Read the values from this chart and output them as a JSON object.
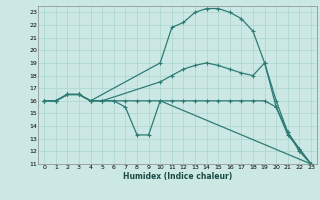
{
  "xlabel": "Humidex (Indice chaleur)",
  "xlim": [
    -0.5,
    23.5
  ],
  "ylim": [
    11,
    23.5
  ],
  "xticks": [
    0,
    1,
    2,
    3,
    4,
    5,
    6,
    7,
    8,
    9,
    10,
    11,
    12,
    13,
    14,
    15,
    16,
    17,
    18,
    19,
    20,
    21,
    22,
    23
  ],
  "yticks": [
    11,
    12,
    13,
    14,
    15,
    16,
    17,
    18,
    19,
    20,
    21,
    22,
    23
  ],
  "bg_color": "#cce8e4",
  "line_color": "#2e7b76",
  "grid_color": "#b0d8d2",
  "lines": [
    {
      "x": [
        0,
        1,
        2,
        3,
        4,
        10,
        11,
        12,
        13,
        14,
        15,
        16,
        17,
        18,
        19,
        20,
        21,
        22,
        23
      ],
      "y": [
        16,
        16,
        16.5,
        16.5,
        16,
        19,
        21.8,
        22.2,
        23.0,
        23.3,
        23.3,
        23.0,
        22.5,
        21.5,
        19.0,
        16.0,
        13.5,
        12.2,
        11.0
      ]
    },
    {
      "x": [
        0,
        1,
        2,
        3,
        4,
        5,
        10,
        11,
        12,
        13,
        14,
        15,
        16,
        17,
        18,
        19,
        20,
        21,
        22,
        23
      ],
      "y": [
        16,
        16,
        16.5,
        16.5,
        16,
        16,
        17.5,
        18.0,
        18.5,
        18.8,
        19.0,
        18.8,
        18.5,
        18.2,
        18.0,
        19.0,
        15.5,
        13.5,
        12.0,
        11.0
      ]
    },
    {
      "x": [
        0,
        1,
        2,
        3,
        4,
        5,
        6,
        7,
        8,
        9,
        10,
        11,
        12,
        13,
        14,
        15,
        16,
        17,
        18,
        19,
        20,
        21,
        22,
        23
      ],
      "y": [
        16,
        16,
        16.5,
        16.5,
        16,
        16,
        16,
        16,
        16,
        16,
        16,
        16,
        16,
        16,
        16,
        16,
        16,
        16,
        16,
        16,
        15.5,
        13.3,
        12.2,
        11.0
      ]
    },
    {
      "x": [
        0,
        1,
        2,
        3,
        4,
        5,
        6,
        7,
        8,
        9,
        10,
        23
      ],
      "y": [
        16,
        16,
        16.5,
        16.5,
        16,
        16,
        16,
        15.5,
        13.3,
        13.3,
        16,
        11
      ]
    }
  ]
}
